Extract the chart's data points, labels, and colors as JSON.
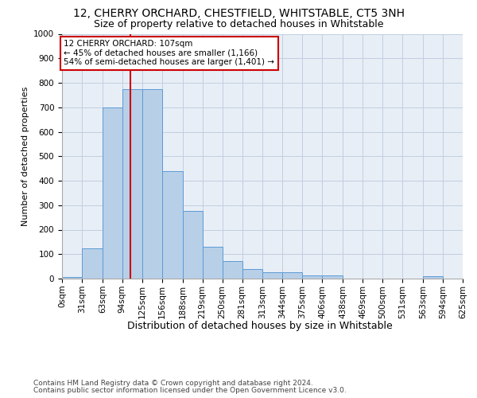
{
  "title1": "12, CHERRY ORCHARD, CHESTFIELD, WHITSTABLE, CT5 3NH",
  "title2": "Size of property relative to detached houses in Whitstable",
  "xlabel": "Distribution of detached houses by size in Whitstable",
  "ylabel": "Number of detached properties",
  "footer1": "Contains HM Land Registry data © Crown copyright and database right 2024.",
  "footer2": "Contains public sector information licensed under the Open Government Licence v3.0.",
  "bin_edges": [
    0,
    31,
    63,
    94,
    125,
    156,
    188,
    219,
    250,
    281,
    313,
    344,
    375,
    406,
    438,
    469,
    500,
    531,
    563,
    594,
    625
  ],
  "bin_labels": [
    "0sqm",
    "31sqm",
    "63sqm",
    "94sqm",
    "125sqm",
    "156sqm",
    "188sqm",
    "219sqm",
    "250sqm",
    "281sqm",
    "313sqm",
    "344sqm",
    "375sqm",
    "406sqm",
    "438sqm",
    "469sqm",
    "500sqm",
    "531sqm",
    "563sqm",
    "594sqm",
    "625sqm"
  ],
  "bar_heights": [
    5,
    125,
    700,
    775,
    775,
    440,
    275,
    130,
    70,
    40,
    25,
    25,
    12,
    12,
    0,
    0,
    0,
    0,
    10,
    0,
    0
  ],
  "bar_color": "#b8cfe8",
  "bar_edge_color": "#5b9bd5",
  "bg_color": "#e8eef6",
  "grid_color": "#c0cfe0",
  "property_size": 107,
  "vline_color": "#cc0000",
  "annotation_line1": "12 CHERRY ORCHARD: 107sqm",
  "annotation_line2": "← 45% of detached houses are smaller (1,166)",
  "annotation_line3": "54% of semi-detached houses are larger (1,401) →",
  "annotation_box_color": "#ffffff",
  "annotation_box_edge": "#cc0000",
  "ylim": [
    0,
    1000
  ],
  "yticks": [
    0,
    100,
    200,
    300,
    400,
    500,
    600,
    700,
    800,
    900,
    1000
  ],
  "title1_fontsize": 10,
  "title2_fontsize": 9,
  "xlabel_fontsize": 9,
  "ylabel_fontsize": 8,
  "tick_fontsize": 7.5,
  "annotation_fontsize": 7.5,
  "footer_fontsize": 6.5
}
